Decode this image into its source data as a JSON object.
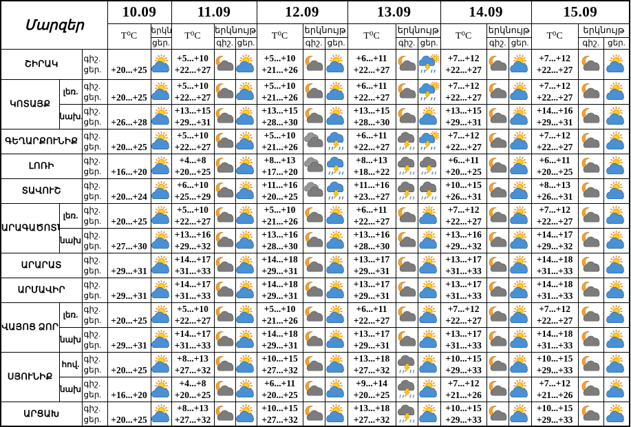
{
  "header": {
    "regions_label": "Մարզեր",
    "dates": [
      "10.09",
      "11.09",
      "12.09",
      "13.09",
      "14.09",
      "15.09"
    ],
    "temp_label": "T⁰C",
    "sky_label": "երկնույթ",
    "sky_label_short": "երկն.",
    "night_label": "գիշ.",
    "day_label": "ցեր."
  },
  "icon_legend": {
    "sun-cloud": "sun behind cloud (partly cloudy day)",
    "moon-cloud": "moon with cloud (partly cloudy night)",
    "clouds": "overcast gray clouds",
    "storm": "blue cloud with lightning and rain",
    "storm-dark": "dark cloud with lightning and rain",
    "sun-storm": "sun with thunderstorm cloud, lightning and rain"
  },
  "colors": {
    "border": "#000000",
    "text": "#000000",
    "sun_fill": "#ffd21e",
    "sun_stroke": "#ef8e0e",
    "moon_fill": "#f2a233",
    "moon_stroke": "#d4821a",
    "cloud_blue": "#4a90d4",
    "cloud_blue_dark": "#2e6da8",
    "cloud_gray": "#7c7c7c",
    "cloud_gray_dark": "#5a5a5a",
    "cloud_light_gray": "#969696",
    "lightning_fill": "#ffd400",
    "lightning_stroke": "#e08000",
    "rain_blue": "#3b7fc4",
    "rain_gray": "#6f8fae"
  },
  "groups": [
    {
      "region": "ՇԻՐԱԿ",
      "zones": [
        {
          "zone": "",
          "days": [
            {
              "night": "",
              "day": "+20...+25",
              "night_icon": "",
              "day_icon": "sun-cloud"
            },
            {
              "night": "+5...+10",
              "day": "+22...+27",
              "night_icon": "moon-cloud",
              "day_icon": "sun-cloud"
            },
            {
              "night": "+5...+10",
              "day": "+21...+26",
              "night_icon": "moon-cloud",
              "day_icon": "sun-cloud"
            },
            {
              "night": "+6...+11",
              "day": "+22...+27",
              "night_icon": "moon-cloud",
              "day_icon": "sun-storm"
            },
            {
              "night": "+7...+12",
              "day": "+22...+27",
              "night_icon": "moon-cloud",
              "day_icon": "sun-cloud"
            },
            {
              "night": "+7...+12",
              "day": "+22...+27",
              "night_icon": "moon-cloud",
              "day_icon": "sun-cloud"
            }
          ]
        }
      ]
    },
    {
      "region": "ԿՈՏԱՅՔ",
      "zones": [
        {
          "zone": "լեռ.",
          "days": [
            {
              "night": "",
              "day": "+20...+25",
              "night_icon": "",
              "day_icon": "sun-cloud"
            },
            {
              "night": "+5...+10",
              "day": "+22...+27",
              "night_icon": "moon-cloud",
              "day_icon": "sun-cloud"
            },
            {
              "night": "+5...+10",
              "day": "+21...+26",
              "night_icon": "moon-cloud",
              "day_icon": "sun-cloud"
            },
            {
              "night": "+6...+11",
              "day": "+22...+27",
              "night_icon": "moon-cloud",
              "day_icon": "sun-storm"
            },
            {
              "night": "+7...+12",
              "day": "+22...+27",
              "night_icon": "moon-cloud",
              "day_icon": "sun-cloud"
            },
            {
              "night": "+7...+12",
              "day": "+22...+27",
              "night_icon": "moon-cloud",
              "day_icon": "sun-cloud"
            }
          ]
        },
        {
          "zone": "նախ.",
          "days": [
            {
              "night": "",
              "day": "+26...+28",
              "night_icon": "",
              "day_icon": "sun-cloud"
            },
            {
              "night": "+13...+15",
              "day": "+29...+31",
              "night_icon": "moon-cloud",
              "day_icon": "sun-cloud"
            },
            {
              "night": "+13...+15",
              "day": "+28...+30",
              "night_icon": "moon-cloud",
              "day_icon": "sun-cloud"
            },
            {
              "night": "+13...+15",
              "day": "+28...+30",
              "night_icon": "moon-cloud",
              "day_icon": "sun-cloud"
            },
            {
              "night": "+13...+15",
              "day": "+29...+31",
              "night_icon": "moon-cloud",
              "day_icon": "sun-cloud"
            },
            {
              "night": "+14...+16",
              "day": "+29...+31",
              "night_icon": "moon-cloud",
              "day_icon": "sun-cloud"
            }
          ]
        }
      ]
    },
    {
      "region": "ԳԵՂԱՐՔՈՒՆԻՔ",
      "zones": [
        {
          "zone": "",
          "days": [
            {
              "night": "",
              "day": "+20...+25",
              "night_icon": "",
              "day_icon": "sun-cloud"
            },
            {
              "night": "+5...+10",
              "day": "+22...+27",
              "night_icon": "moon-cloud",
              "day_icon": "sun-cloud"
            },
            {
              "night": "+5...+10",
              "day": "+21...+26",
              "night_icon": "clouds",
              "day_icon": "storm"
            },
            {
              "night": "+6...+11",
              "day": "+22...+27",
              "night_icon": "storm-dark",
              "day_icon": "sun-storm"
            },
            {
              "night": "+7...+12",
              "day": "+22...+27",
              "night_icon": "moon-cloud",
              "day_icon": "sun-cloud"
            },
            {
              "night": "+7...+12",
              "day": "+22...+27",
              "night_icon": "moon-cloud",
              "day_icon": "sun-cloud"
            }
          ]
        }
      ]
    },
    {
      "region": "ԼՈՌԻ",
      "zones": [
        {
          "zone": "",
          "days": [
            {
              "night": "",
              "day": "+16...+20",
              "night_icon": "",
              "day_icon": "sun-cloud"
            },
            {
              "night": "+4...+8",
              "day": "+20...+25",
              "night_icon": "moon-cloud",
              "day_icon": "sun-cloud"
            },
            {
              "night": "+8...+13",
              "day": "+17...+20",
              "night_icon": "clouds",
              "day_icon": "storm"
            },
            {
              "night": "+8...+13",
              "day": "+18...+22",
              "night_icon": "storm-dark",
              "day_icon": "storm-dark"
            },
            {
              "night": "+6...+11",
              "day": "+20...+25",
              "night_icon": "moon-cloud",
              "day_icon": "sun-cloud"
            },
            {
              "night": "+6...+11",
              "day": "+20...+25",
              "night_icon": "moon-cloud",
              "day_icon": "sun-cloud"
            }
          ]
        }
      ]
    },
    {
      "region": "ՏԱՎՈՒՇ",
      "zones": [
        {
          "zone": "",
          "days": [
            {
              "night": "",
              "day": "+20...+24",
              "night_icon": "",
              "day_icon": "sun-cloud"
            },
            {
              "night": "+6...+10",
              "day": "+25...+29",
              "night_icon": "moon-cloud",
              "day_icon": "sun-cloud"
            },
            {
              "night": "+11...+16",
              "day": "+20...+25",
              "night_icon": "clouds",
              "day_icon": "storm"
            },
            {
              "night": "+11...+16",
              "day": "+23...+27",
              "night_icon": "storm-dark",
              "day_icon": "storm-dark"
            },
            {
              "night": "+10...+15",
              "day": "+26...+31",
              "night_icon": "moon-cloud",
              "day_icon": "sun-cloud"
            },
            {
              "night": "+8...+13",
              "day": "+26...+31",
              "night_icon": "moon-cloud",
              "day_icon": "sun-cloud"
            }
          ]
        }
      ]
    },
    {
      "region": "ԱՐԱԳԱԾՈՏՆ",
      "zones": [
        {
          "zone": "լեռ.",
          "days": [
            {
              "night": "",
              "day": "+20...+25",
              "night_icon": "",
              "day_icon": "sun-cloud"
            },
            {
              "night": "+5...+10",
              "day": "+22...+27",
              "night_icon": "moon-cloud",
              "day_icon": "sun-cloud"
            },
            {
              "night": "+5...+10",
              "day": "+21...+26",
              "night_icon": "moon-cloud",
              "day_icon": "sun-cloud"
            },
            {
              "night": "+6...+11",
              "day": "+22...+27",
              "night_icon": "moon-cloud",
              "day_icon": "sun-cloud"
            },
            {
              "night": "+7...+12",
              "day": "+22...+27",
              "night_icon": "moon-cloud",
              "day_icon": "sun-cloud"
            },
            {
              "night": "+7...+12",
              "day": "+22...+27",
              "night_icon": "moon-cloud",
              "day_icon": "sun-cloud"
            }
          ]
        },
        {
          "zone": "նախ",
          "days": [
            {
              "night": "",
              "day": "+27...+30",
              "night_icon": "",
              "day_icon": "sun-cloud"
            },
            {
              "night": "+13...+16",
              "day": "+29...+32",
              "night_icon": "moon-cloud",
              "day_icon": "sun-cloud"
            },
            {
              "night": "+13...+16",
              "day": "+28...+30",
              "night_icon": "moon-cloud",
              "day_icon": "sun-cloud"
            },
            {
              "night": "+13...+16",
              "day": "+28...+30",
              "night_icon": "moon-cloud",
              "day_icon": "sun-cloud"
            },
            {
              "night": "+13...+16",
              "day": "+29...+32",
              "night_icon": "moon-cloud",
              "day_icon": "sun-cloud"
            },
            {
              "night": "+14...+17",
              "day": "+29...+32",
              "night_icon": "moon-cloud",
              "day_icon": "sun-cloud"
            }
          ]
        }
      ]
    },
    {
      "region": "ԱՐԱՐԱՏ",
      "zones": [
        {
          "zone": "",
          "days": [
            {
              "night": "",
              "day": "+29...+31",
              "night_icon": "",
              "day_icon": "sun-cloud"
            },
            {
              "night": "+14...+17",
              "day": "+31...+33",
              "night_icon": "moon-cloud",
              "day_icon": "sun-cloud"
            },
            {
              "night": "+14...+18",
              "day": "+29...+31",
              "night_icon": "moon-cloud",
              "day_icon": "sun-cloud"
            },
            {
              "night": "+13...+17",
              "day": "+29...+31",
              "night_icon": "moon-cloud",
              "day_icon": "sun-cloud"
            },
            {
              "night": "+13...+17",
              "day": "+31...+33",
              "night_icon": "moon-cloud",
              "day_icon": "sun-cloud"
            },
            {
              "night": "+14...+18",
              "day": "+31...+33",
              "night_icon": "moon-cloud",
              "day_icon": "sun-cloud"
            }
          ]
        }
      ]
    },
    {
      "region": "ԱՐՄԱՎԻՐ",
      "zones": [
        {
          "zone": "",
          "days": [
            {
              "night": "",
              "day": "+29...+31",
              "night_icon": "",
              "day_icon": "sun-cloud"
            },
            {
              "night": "+14...+17",
              "day": "+31...+33",
              "night_icon": "moon-cloud",
              "day_icon": "sun-cloud"
            },
            {
              "night": "+14...+18",
              "day": "+29...+31",
              "night_icon": "moon-cloud",
              "day_icon": "sun-cloud"
            },
            {
              "night": "+13...+17",
              "day": "+29...+31",
              "night_icon": "moon-cloud",
              "day_icon": "sun-cloud"
            },
            {
              "night": "+13...+17",
              "day": "+31...+33",
              "night_icon": "moon-cloud",
              "day_icon": "sun-cloud"
            },
            {
              "night": "+14...+18",
              "day": "+31...+33",
              "night_icon": "moon-cloud",
              "day_icon": "sun-cloud"
            }
          ]
        }
      ]
    },
    {
      "region": "ՎԱՅՈՑ ՁՈՐ",
      "zones": [
        {
          "zone": "լեռ.",
          "days": [
            {
              "night": "",
              "day": "+20...+25",
              "night_icon": "",
              "day_icon": "sun-cloud"
            },
            {
              "night": "+5...+10",
              "day": "+22...+27",
              "night_icon": "moon-cloud",
              "day_icon": "sun-cloud"
            },
            {
              "night": "+5...+10",
              "day": "+21...+26",
              "night_icon": "moon-cloud",
              "day_icon": "sun-cloud"
            },
            {
              "night": "+6...+11",
              "day": "+22...+27",
              "night_icon": "moon-cloud",
              "day_icon": "sun-cloud"
            },
            {
              "night": "+7...+12",
              "day": "+22...+27",
              "night_icon": "moon-cloud",
              "day_icon": "sun-cloud"
            },
            {
              "night": "+7...+12",
              "day": "+22...+27",
              "night_icon": "moon-cloud",
              "day_icon": "sun-cloud"
            }
          ]
        },
        {
          "zone": "նախ",
          "days": [
            {
              "night": "",
              "day": "+29...+31",
              "night_icon": "",
              "day_icon": "sun-cloud"
            },
            {
              "night": "+14...+17",
              "day": "+31...+33",
              "night_icon": "moon-cloud",
              "day_icon": "sun-cloud"
            },
            {
              "night": "+14...+18",
              "day": "+29...+31",
              "night_icon": "moon-cloud",
              "day_icon": "sun-cloud"
            },
            {
              "night": "+13...+17",
              "day": "+29...+31",
              "night_icon": "moon-cloud",
              "day_icon": "sun-cloud"
            },
            {
              "night": "+13...+17",
              "day": "+31...+33",
              "night_icon": "moon-cloud",
              "day_icon": "sun-cloud"
            },
            {
              "night": "+14...+18",
              "day": "+31...+33",
              "night_icon": "moon-cloud",
              "day_icon": "sun-cloud"
            }
          ]
        }
      ]
    },
    {
      "region": "ՍՅՈՒՆԻՔ",
      "zones": [
        {
          "zone": "հով.",
          "days": [
            {
              "night": "",
              "day": "+20...+25",
              "night_icon": "",
              "day_icon": "sun-cloud"
            },
            {
              "night": "+8...+13",
              "day": "+27...+32",
              "night_icon": "moon-cloud",
              "day_icon": "sun-cloud"
            },
            {
              "night": "+10...+15",
              "day": "+27...+32",
              "night_icon": "moon-cloud",
              "day_icon": "sun-cloud"
            },
            {
              "night": "+13...+18",
              "day": "+27...+32",
              "night_icon": "storm-dark",
              "day_icon": "sun-cloud"
            },
            {
              "night": "+10...+15",
              "day": "+29...+33",
              "night_icon": "moon-cloud",
              "day_icon": "sun-cloud"
            },
            {
              "night": "+10...+15",
              "day": "+29...+33",
              "night_icon": "moon-cloud",
              "day_icon": "sun-cloud"
            }
          ]
        },
        {
          "zone": "նախ",
          "days": [
            {
              "night": "",
              "day": "+16...+20",
              "night_icon": "",
              "day_icon": "sun-cloud"
            },
            {
              "night": "+4...+8",
              "day": "+20...+25",
              "night_icon": "moon-cloud",
              "day_icon": "sun-cloud"
            },
            {
              "night": "+6...+11",
              "day": "+20...+25",
              "night_icon": "moon-cloud",
              "day_icon": "sun-cloud"
            },
            {
              "night": "+9...+14",
              "day": "+20...+25",
              "night_icon": "storm-dark",
              "day_icon": "sun-cloud"
            },
            {
              "night": "+7...+12",
              "day": "+21...+26",
              "night_icon": "moon-cloud",
              "day_icon": "sun-cloud"
            },
            {
              "night": "+7...+12",
              "day": "+21...+26",
              "night_icon": "moon-cloud",
              "day_icon": "sun-cloud"
            }
          ]
        }
      ]
    },
    {
      "region": "ԱՐՑԱԽ",
      "zones": [
        {
          "zone": "",
          "days": [
            {
              "night": "",
              "day": "+20...+25",
              "night_icon": "",
              "day_icon": "sun-cloud"
            },
            {
              "night": "+8...+13",
              "day": "+27...+32",
              "night_icon": "moon-cloud",
              "day_icon": "sun-cloud"
            },
            {
              "night": "+10...+15",
              "day": "+27...+32",
              "night_icon": "moon-cloud",
              "day_icon": "sun-cloud"
            },
            {
              "night": "+13...+18",
              "day": "+27...+32",
              "night_icon": "storm-dark",
              "day_icon": "sun-cloud"
            },
            {
              "night": "+10...+15",
              "day": "+29...+33",
              "night_icon": "moon-cloud",
              "day_icon": "sun-cloud"
            },
            {
              "night": "+10...+15",
              "day": "+29...+33",
              "night_icon": "moon-cloud",
              "day_icon": "sun-cloud"
            }
          ]
        }
      ]
    }
  ]
}
